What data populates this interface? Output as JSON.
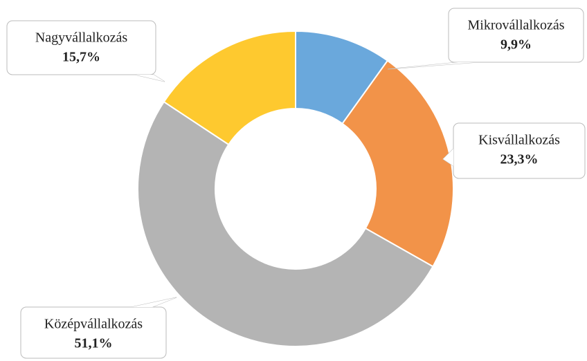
{
  "chart_data": {
    "type": "donut",
    "categories": [
      "Mikrovállalkozás",
      "Kisvállalkozás",
      "Középvállalkozás",
      "Nagyvállalkozás"
    ],
    "values": [
      9.9,
      23.3,
      51.1,
      15.7
    ],
    "value_labels": [
      "9,9%",
      "23,3%",
      "51,1%",
      "15,7%"
    ],
    "colors": [
      "#6aa8dc",
      "#f29349",
      "#b4b4b4",
      "#fec92f"
    ]
  }
}
